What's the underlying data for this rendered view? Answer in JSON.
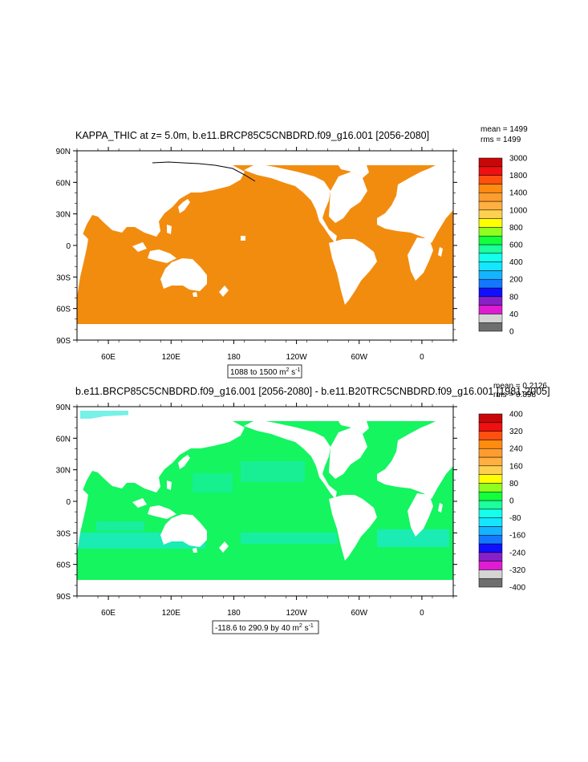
{
  "panels": [
    {
      "title": "KAPPA_THIC at z=   5.0m, b.e11.BRCP85C5CNBDRD.f09_g16.001 [2056-2080]",
      "stats": {
        "mean": "mean = 1499",
        "rms": "rms = 1499"
      },
      "range": {
        "text": "1088 to 1500 m",
        "sup": "2",
        "unit": " s",
        "unit_sup": "-1"
      },
      "ocean_color": "#f28c0f",
      "land_color": "#ffffff",
      "lat_ticks": [
        "90N",
        "60N",
        "30N",
        "0",
        "30S",
        "60S",
        "90S"
      ],
      "lon_ticks": [
        "60E",
        "120E",
        "180",
        "120W",
        "60W",
        "0"
      ],
      "colorbar": {
        "colors": [
          "#6e6e6e",
          "#d4d4d4",
          "#e01bd4",
          "#8820c8",
          "#1010ff",
          "#1478ff",
          "#14b4ff",
          "#14e6ff",
          "#14ffec",
          "#1cff9c",
          "#14ff3c",
          "#90ff20",
          "#ffff00",
          "#ffd050",
          "#ffb040",
          "#ff9c30",
          "#ff8c10",
          "#ff5010",
          "#f01010",
          "#c80808"
        ],
        "labels": [
          "0",
          "40",
          "80",
          "200",
          "400",
          "600",
          "800",
          "1000",
          "1400",
          "1800",
          "3000"
        ]
      }
    },
    {
      "title": "b.e11.BRCP85C5CNBDRD.f09_g16.001 [2056-2080] - b.e11.B20TRC5CNBDRD.f09_g16.001 [1981-2005]",
      "stats": {
        "mean": "mean = 0.2126",
        "rms": "rms = 0.898"
      },
      "range": {
        "text": "-118.6 to 290.9 by 40 m",
        "sup": "2",
        "unit": " s",
        "unit_sup": "-1"
      },
      "ocean_color": "#14f560",
      "land_color": "#ffffff",
      "lat_ticks": [
        "90N",
        "60N",
        "30N",
        "0",
        "30S",
        "60S",
        "90S"
      ],
      "lon_ticks": [
        "60E",
        "120E",
        "180",
        "120W",
        "60W",
        "0"
      ],
      "colorbar": {
        "colors": [
          "#6e6e6e",
          "#d4d4d4",
          "#e01bd4",
          "#8820c8",
          "#1010ff",
          "#1478ff",
          "#14b4ff",
          "#14e6ff",
          "#14ffec",
          "#1cff9c",
          "#14ff3c",
          "#90ff20",
          "#ffff00",
          "#ffd050",
          "#ffb040",
          "#ff9c30",
          "#ff8c10",
          "#ff5010",
          "#f01010",
          "#c80808"
        ],
        "labels": [
          "-400",
          "-320",
          "-240",
          "-160",
          "-80",
          "0",
          "80",
          "160",
          "240",
          "320",
          "400"
        ]
      }
    }
  ]
}
